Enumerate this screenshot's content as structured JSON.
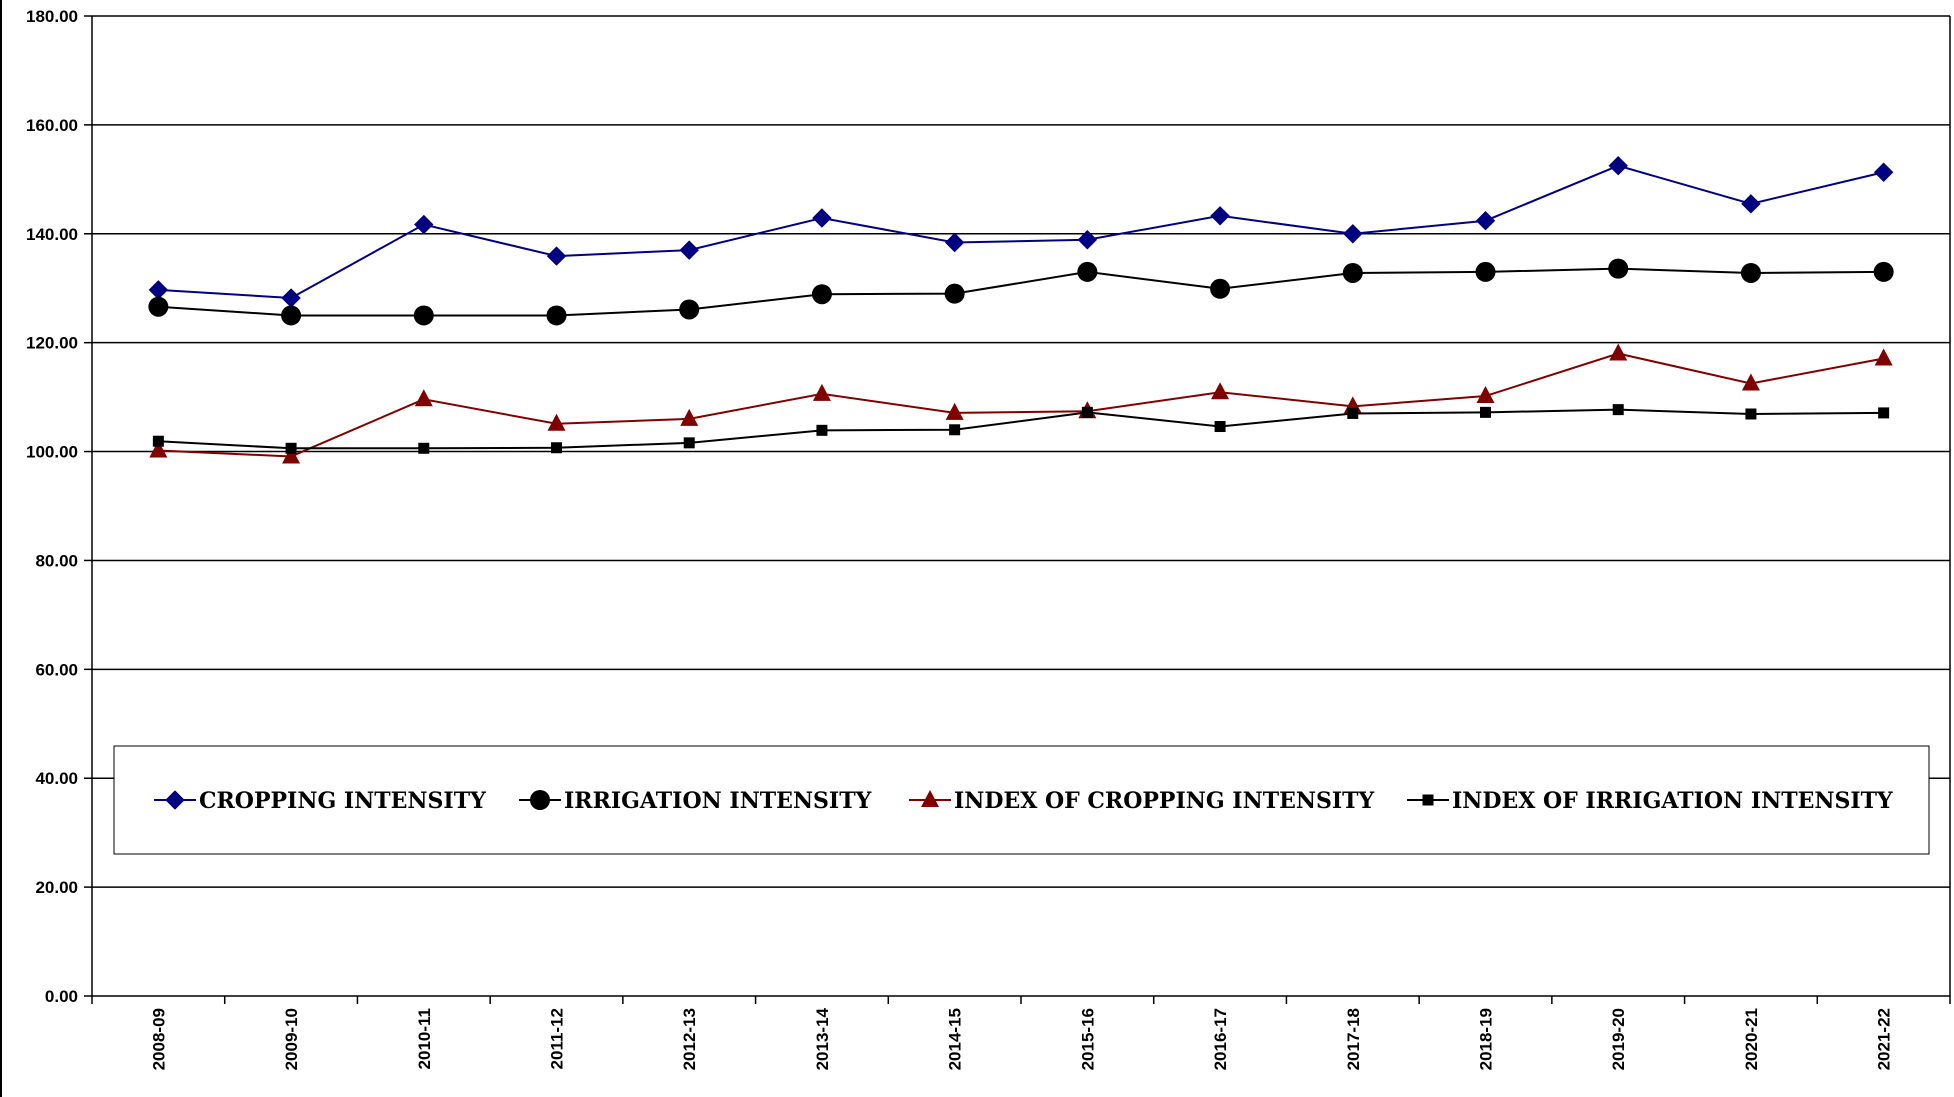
{
  "chart_data": {
    "type": "line",
    "title": "",
    "xlabel": "",
    "ylabel": "",
    "ylim": [
      0,
      180
    ],
    "yticks": [
      "0.00",
      "20.00",
      "40.00",
      "60.00",
      "80.00",
      "100.00",
      "120.00",
      "140.00",
      "160.00",
      "180.00"
    ],
    "categories": [
      "2008-09",
      "2009-10",
      "2010-11",
      "2011-12",
      "2012-13",
      "2013-14",
      "2014-15",
      "2015-16",
      "2016-17",
      "2017-18",
      "2018-19",
      "2019-20",
      "2020-21",
      "2021-22"
    ],
    "grid": "horizontal",
    "legend_position": "inside-lower",
    "series": [
      {
        "name": "CROPPING INTENSITY",
        "color": "#000080",
        "marker": "diamond",
        "values": [
          129.7,
          128.2,
          141.7,
          135.9,
          137.0,
          142.9,
          138.4,
          138.9,
          143.3,
          140.0,
          142.4,
          152.5,
          145.5,
          151.3
        ]
      },
      {
        "name": "IRRIGATION INTENSITY",
        "color": "#000000",
        "marker": "circle",
        "values": [
          126.6,
          125.0,
          125.0,
          125.0,
          126.1,
          128.9,
          129.0,
          133.0,
          129.9,
          132.8,
          133.0,
          133.6,
          132.8,
          133.0
        ]
      },
      {
        "name": "INDEX OF CROPPING INTENSITY",
        "color": "#800000",
        "marker": "triangle",
        "values": [
          100.2,
          99.1,
          109.6,
          105.1,
          106.0,
          110.6,
          107.1,
          107.4,
          110.9,
          108.3,
          110.2,
          118.0,
          112.5,
          117.1
        ]
      },
      {
        "name": "INDEX OF IRRIGATION INTENSITY",
        "color": "#000000",
        "marker": "square",
        "values": [
          101.9,
          100.6,
          100.6,
          100.7,
          101.6,
          103.9,
          104.0,
          107.2,
          104.6,
          107.0,
          107.2,
          107.7,
          106.9,
          107.1
        ]
      }
    ]
  }
}
